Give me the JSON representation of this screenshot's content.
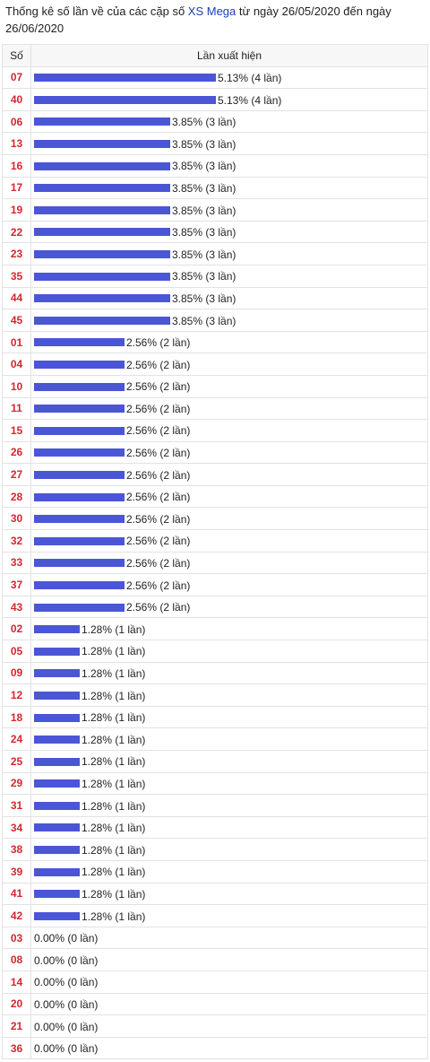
{
  "header": {
    "title_prefix": "Thống kê số lần về của các cặp số ",
    "title_link": "XS Mega",
    "title_suffix": " từ ngày 26/05/2020 đến ngày 26/06/2020"
  },
  "table": {
    "col_number": "Số",
    "col_occurrence": "Lần xuất hiện",
    "accent_color": "#4a56d6",
    "number_color": "#d6262f",
    "rows": [
      {
        "num": "07",
        "percent": 5.13,
        "label": "5.13% (4 lần)"
      },
      {
        "num": "40",
        "percent": 5.13,
        "label": "5.13% (4 lần)"
      },
      {
        "num": "06",
        "percent": 3.85,
        "label": "3.85% (3 lần)"
      },
      {
        "num": "13",
        "percent": 3.85,
        "label": "3.85% (3 lần)"
      },
      {
        "num": "16",
        "percent": 3.85,
        "label": "3.85% (3 lần)"
      },
      {
        "num": "17",
        "percent": 3.85,
        "label": "3.85% (3 lần)"
      },
      {
        "num": "19",
        "percent": 3.85,
        "label": "3.85% (3 lần)"
      },
      {
        "num": "22",
        "percent": 3.85,
        "label": "3.85% (3 lần)"
      },
      {
        "num": "23",
        "percent": 3.85,
        "label": "3.85% (3 lần)"
      },
      {
        "num": "35",
        "percent": 3.85,
        "label": "3.85% (3 lần)"
      },
      {
        "num": "44",
        "percent": 3.85,
        "label": "3.85% (3 lần)"
      },
      {
        "num": "45",
        "percent": 3.85,
        "label": "3.85% (3 lần)"
      },
      {
        "num": "01",
        "percent": 2.56,
        "label": "2.56% (2 lần)"
      },
      {
        "num": "04",
        "percent": 2.56,
        "label": "2.56% (2 lần)"
      },
      {
        "num": "10",
        "percent": 2.56,
        "label": "2.56% (2 lần)"
      },
      {
        "num": "11",
        "percent": 2.56,
        "label": "2.56% (2 lần)"
      },
      {
        "num": "15",
        "percent": 2.56,
        "label": "2.56% (2 lần)"
      },
      {
        "num": "26",
        "percent": 2.56,
        "label": "2.56% (2 lần)"
      },
      {
        "num": "27",
        "percent": 2.56,
        "label": "2.56% (2 lần)"
      },
      {
        "num": "28",
        "percent": 2.56,
        "label": "2.56% (2 lần)"
      },
      {
        "num": "30",
        "percent": 2.56,
        "label": "2.56% (2 lần)"
      },
      {
        "num": "32",
        "percent": 2.56,
        "label": "2.56% (2 lần)"
      },
      {
        "num": "33",
        "percent": 2.56,
        "label": "2.56% (2 lần)"
      },
      {
        "num": "37",
        "percent": 2.56,
        "label": "2.56% (2 lần)"
      },
      {
        "num": "43",
        "percent": 2.56,
        "label": "2.56% (2 lần)"
      },
      {
        "num": "02",
        "percent": 1.28,
        "label": "1.28% (1 lần)"
      },
      {
        "num": "05",
        "percent": 1.28,
        "label": "1.28% (1 lần)"
      },
      {
        "num": "09",
        "percent": 1.28,
        "label": "1.28% (1 lần)"
      },
      {
        "num": "12",
        "percent": 1.28,
        "label": "1.28% (1 lần)"
      },
      {
        "num": "18",
        "percent": 1.28,
        "label": "1.28% (1 lần)"
      },
      {
        "num": "24",
        "percent": 1.28,
        "label": "1.28% (1 lần)"
      },
      {
        "num": "25",
        "percent": 1.28,
        "label": "1.28% (1 lần)"
      },
      {
        "num": "29",
        "percent": 1.28,
        "label": "1.28% (1 lần)"
      },
      {
        "num": "31",
        "percent": 1.28,
        "label": "1.28% (1 lần)"
      },
      {
        "num": "34",
        "percent": 1.28,
        "label": "1.28% (1 lần)"
      },
      {
        "num": "38",
        "percent": 1.28,
        "label": "1.28% (1 lần)"
      },
      {
        "num": "39",
        "percent": 1.28,
        "label": "1.28% (1 lần)"
      },
      {
        "num": "41",
        "percent": 1.28,
        "label": "1.28% (1 lần)"
      },
      {
        "num": "42",
        "percent": 1.28,
        "label": "1.28% (1 lần)"
      },
      {
        "num": "03",
        "percent": 0,
        "label": "0.00% (0 lần)"
      },
      {
        "num": "08",
        "percent": 0,
        "label": "0.00% (0 lần)"
      },
      {
        "num": "14",
        "percent": 0,
        "label": "0.00% (0 lần)"
      },
      {
        "num": "20",
        "percent": 0,
        "label": "0.00% (0 lần)"
      },
      {
        "num": "21",
        "percent": 0,
        "label": "0.00% (0 lần)"
      },
      {
        "num": "36",
        "percent": 0,
        "label": "0.00% (0 lần)"
      }
    ]
  }
}
